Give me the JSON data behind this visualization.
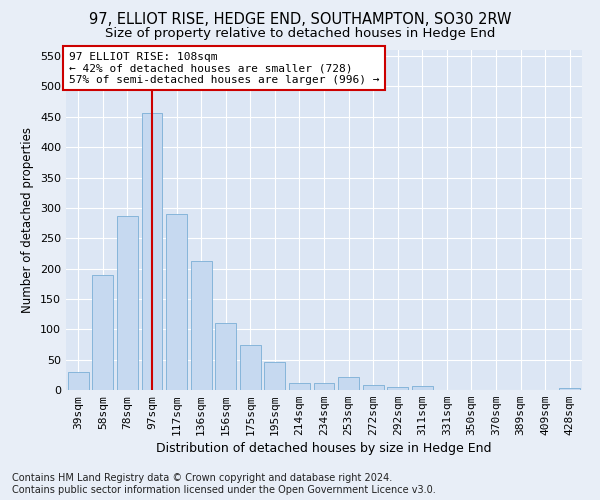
{
  "title": "97, ELLIOT RISE, HEDGE END, SOUTHAMPTON, SO30 2RW",
  "subtitle": "Size of property relative to detached houses in Hedge End",
  "xlabel": "Distribution of detached houses by size in Hedge End",
  "ylabel": "Number of detached properties",
  "categories": [
    "39sqm",
    "58sqm",
    "78sqm",
    "97sqm",
    "117sqm",
    "136sqm",
    "156sqm",
    "175sqm",
    "195sqm",
    "214sqm",
    "234sqm",
    "253sqm",
    "272sqm",
    "292sqm",
    "311sqm",
    "331sqm",
    "350sqm",
    "370sqm",
    "389sqm",
    "409sqm",
    "428sqm"
  ],
  "values": [
    30,
    190,
    287,
    457,
    290,
    213,
    110,
    74,
    46,
    12,
    12,
    21,
    9,
    5,
    6,
    0,
    0,
    0,
    0,
    0,
    4
  ],
  "bar_color": "#c6d9f0",
  "bar_edgecolor": "#7aaed6",
  "vline_x_index": 3,
  "vline_color": "#cc0000",
  "annotation_text": "97 ELLIOT RISE: 108sqm\n← 42% of detached houses are smaller (728)\n57% of semi-detached houses are larger (996) →",
  "annotation_box_facecolor": "#ffffff",
  "annotation_box_edgecolor": "#cc0000",
  "ylim": [
    0,
    560
  ],
  "yticks": [
    0,
    50,
    100,
    150,
    200,
    250,
    300,
    350,
    400,
    450,
    500,
    550
  ],
  "background_color": "#e8eef7",
  "plot_bg_color": "#dce6f4",
  "footer": "Contains HM Land Registry data © Crown copyright and database right 2024.\nContains public sector information licensed under the Open Government Licence v3.0.",
  "title_fontsize": 10.5,
  "subtitle_fontsize": 9.5,
  "xlabel_fontsize": 9,
  "ylabel_fontsize": 8.5,
  "tick_fontsize": 8,
  "annotation_fontsize": 8,
  "footer_fontsize": 7
}
